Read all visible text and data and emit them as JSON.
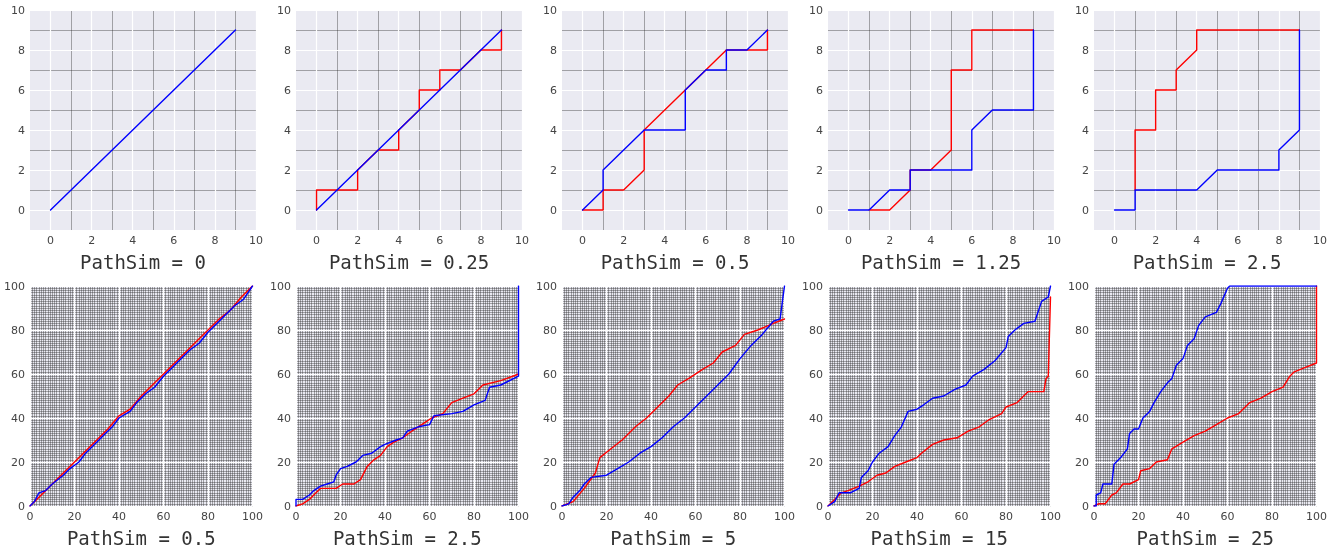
{
  "chart_data": [
    {
      "type": "line",
      "xlabel": "PathSim = 0",
      "xlim": [
        -1,
        10
      ],
      "ylim": [
        -1,
        10
      ],
      "xticks": [
        0,
        2,
        4,
        6,
        8,
        10
      ],
      "yticks": [
        0,
        2,
        4,
        6,
        8,
        10
      ],
      "grid": true,
      "line_style": "solid",
      "series": [
        {
          "color": "#0000ff",
          "x": [
            0,
            9
          ],
          "values": [
            0,
            9
          ]
        }
      ]
    },
    {
      "type": "line",
      "xlabel": "PathSim = 0.25",
      "xlim": [
        -1,
        10
      ],
      "ylim": [
        -1,
        10
      ],
      "xticks": [
        0,
        2,
        4,
        6,
        8,
        10
      ],
      "yticks": [
        0,
        2,
        4,
        6,
        8,
        10
      ],
      "grid": true,
      "line_style": "solid",
      "series": [
        {
          "color": "#ff0000",
          "x": [
            0,
            0,
            2,
            2,
            3,
            4,
            4,
            5,
            5,
            6,
            6,
            7,
            8,
            9,
            9
          ],
          "values": [
            0,
            1,
            1,
            2,
            3,
            3,
            4,
            5,
            6,
            6,
            7,
            7,
            8,
            8,
            9
          ]
        },
        {
          "color": "#0000ff",
          "x": [
            0,
            9
          ],
          "values": [
            0,
            9
          ]
        }
      ]
    },
    {
      "type": "line",
      "xlabel": "PathSim = 0.5",
      "xlim": [
        -1,
        10
      ],
      "ylim": [
        -1,
        10
      ],
      "xticks": [
        0,
        2,
        4,
        6,
        8,
        10
      ],
      "yticks": [
        0,
        2,
        4,
        6,
        8,
        10
      ],
      "grid": true,
      "line_style": "solid",
      "series": [
        {
          "color": "#ff0000",
          "x": [
            0,
            1,
            1,
            2,
            3,
            3,
            5,
            6,
            7,
            8,
            9,
            9
          ],
          "values": [
            0,
            0,
            1,
            1,
            2,
            4,
            6,
            7,
            8,
            8,
            8,
            9
          ]
        },
        {
          "color": "#0000ff",
          "x": [
            0,
            1,
            1,
            3,
            5,
            5,
            6,
            7,
            7,
            8,
            9
          ],
          "values": [
            0,
            1,
            2,
            4,
            4,
            6,
            7,
            7,
            8,
            8,
            9
          ]
        }
      ]
    },
    {
      "type": "line",
      "xlabel": "PathSim = 1.25",
      "xlim": [
        -1,
        10
      ],
      "ylim": [
        -1,
        10
      ],
      "xticks": [
        0,
        2,
        4,
        6,
        8,
        10
      ],
      "yticks": [
        0,
        2,
        4,
        6,
        8,
        10
      ],
      "grid": true,
      "line_style": "solid",
      "series": [
        {
          "color": "#ff0000",
          "x": [
            1,
            2,
            3,
            3,
            4,
            5,
            5,
            6,
            6,
            9
          ],
          "values": [
            0,
            0,
            1,
            2,
            2,
            3,
            7,
            7,
            9,
            9
          ]
        },
        {
          "color": "#0000ff",
          "x": [
            0,
            1,
            2,
            3,
            3,
            6,
            6,
            7,
            9,
            9
          ],
          "values": [
            0,
            0,
            1,
            1,
            2,
            2,
            4,
            5,
            5,
            9
          ]
        }
      ]
    },
    {
      "type": "line",
      "xlabel": "PathSim = 2.5",
      "xlim": [
        -1,
        10
      ],
      "ylim": [
        -1,
        10
      ],
      "xticks": [
        0,
        2,
        4,
        6,
        8,
        10
      ],
      "yticks": [
        0,
        2,
        4,
        6,
        8,
        10
      ],
      "grid": true,
      "line_style": "solid",
      "series": [
        {
          "color": "#ff0000",
          "x": [
            1,
            1,
            2,
            2,
            3,
            3,
            4,
            4,
            9
          ],
          "values": [
            1,
            4,
            4,
            6,
            6,
            7,
            8,
            9,
            9
          ]
        },
        {
          "color": "#0000ff",
          "x": [
            0,
            1,
            1,
            4,
            5,
            8,
            8,
            9,
            9
          ],
          "values": [
            0,
            0,
            1,
            1,
            2,
            2,
            3,
            4,
            9
          ]
        }
      ]
    },
    {
      "type": "line",
      "xlabel": "PathSim = 0.5",
      "xlim": [
        0,
        100
      ],
      "ylim": [
        0,
        100
      ],
      "xticks": [
        0,
        20,
        40,
        60,
        80,
        100
      ],
      "yticks": [
        0,
        20,
        40,
        60,
        80,
        100
      ],
      "grid": true,
      "line_style": "solid",
      "series": [
        {
          "color": "#ff0000",
          "x": [
            0,
            3,
            8,
            12,
            16,
            20,
            25,
            30,
            35,
            40,
            45,
            50,
            55,
            60,
            65,
            70,
            75,
            80,
            85,
            90,
            95,
            100
          ],
          "values": [
            0,
            3,
            8,
            12,
            16,
            20,
            25,
            30,
            35,
            41,
            44,
            50,
            55,
            60,
            65,
            70,
            75,
            80,
            85,
            89,
            95,
            100
          ]
        },
        {
          "color": "#0000ff",
          "x": [
            0,
            2,
            4,
            7,
            10,
            15,
            18,
            22,
            25,
            30,
            33,
            37,
            40,
            45,
            48,
            52,
            56,
            60,
            64,
            68,
            72,
            76,
            80,
            84,
            88,
            92,
            96,
            98,
            100
          ],
          "values": [
            0,
            2,
            6,
            7,
            10,
            14,
            17,
            20,
            24,
            29,
            32,
            36,
            40,
            43,
            47,
            51,
            54,
            59,
            63,
            67,
            71,
            74,
            79,
            83,
            87,
            91,
            94,
            97,
            100
          ]
        }
      ]
    },
    {
      "type": "line",
      "xlabel": "PathSim = 2.5",
      "xlim": [
        0,
        100
      ],
      "ylim": [
        0,
        100
      ],
      "xticks": [
        0,
        20,
        40,
        60,
        80,
        100
      ],
      "yticks": [
        0,
        20,
        40,
        60,
        80,
        100
      ],
      "grid": true,
      "line_style": "solid",
      "series": [
        {
          "color": "#ff0000",
          "x": [
            0,
            3,
            6,
            9,
            11,
            18,
            21,
            26,
            29,
            32,
            35,
            38,
            41,
            44,
            48,
            52,
            55,
            58,
            61,
            66,
            70,
            75,
            80,
            84,
            92,
            100
          ],
          "values": [
            0,
            1,
            3,
            6,
            8,
            8,
            10,
            10,
            12,
            18,
            21,
            23,
            27,
            29,
            31,
            34,
            36,
            38,
            40,
            42,
            47,
            49,
            51,
            55,
            57,
            60
          ]
        },
        {
          "color": "#0000ff",
          "x": [
            0,
            0,
            3,
            6,
            8,
            11,
            14,
            17,
            18,
            20,
            23,
            27,
            30,
            34,
            38,
            40,
            45,
            48,
            50,
            55,
            60,
            62,
            70,
            75,
            80,
            85,
            87,
            92,
            98,
            100,
            100
          ],
          "values": [
            0,
            3,
            3,
            5,
            7,
            9,
            10,
            11,
            14,
            17,
            18,
            20,
            23,
            24,
            27,
            28,
            30,
            31,
            34,
            36,
            37,
            41,
            42,
            43,
            46,
            48,
            54,
            55,
            58,
            59,
            100
          ]
        }
      ]
    },
    {
      "type": "line",
      "xlabel": "PathSim = 5",
      "xlim": [
        0,
        100
      ],
      "ylim": [
        0,
        100
      ],
      "xticks": [
        0,
        20,
        40,
        60,
        80,
        100
      ],
      "yticks": [
        0,
        20,
        40,
        60,
        80,
        100
      ],
      "grid": true,
      "line_style": "solid",
      "series": [
        {
          "color": "#ff0000",
          "x": [
            0,
            5,
            10,
            15,
            17,
            22,
            27,
            33,
            38,
            43,
            48,
            52,
            57,
            63,
            68,
            72,
            78,
            82,
            88,
            95,
            100
          ],
          "values": [
            0,
            2,
            8,
            15,
            22,
            26,
            30,
            36,
            40,
            45,
            50,
            55,
            58,
            62,
            65,
            70,
            73,
            78,
            80,
            83,
            85
          ]
        },
        {
          "color": "#0000ff",
          "x": [
            0,
            3,
            5,
            8,
            10,
            13,
            20,
            25,
            30,
            35,
            40,
            45,
            50,
            55,
            60,
            65,
            70,
            75,
            80,
            85,
            90,
            95,
            98,
            100
          ],
          "values": [
            0,
            1,
            4,
            7,
            10,
            13,
            14,
            17,
            20,
            24,
            27,
            31,
            36,
            40,
            45,
            50,
            55,
            60,
            67,
            73,
            78,
            84,
            85,
            100
          ]
        }
      ]
    },
    {
      "type": "line",
      "xlabel": "PathSim = 15",
      "xlim": [
        0,
        100
      ],
      "ylim": [
        0,
        100
      ],
      "xticks": [
        0,
        20,
        40,
        60,
        80,
        100
      ],
      "yticks": [
        0,
        20,
        40,
        60,
        80,
        100
      ],
      "grid": true,
      "line_style": "solid",
      "series": [
        {
          "color": "#ff0000",
          "x": [
            0,
            3,
            6,
            9,
            14,
            18,
            22,
            26,
            30,
            35,
            40,
            42,
            47,
            52,
            58,
            63,
            68,
            72,
            78,
            80,
            85,
            90,
            97,
            98,
            99,
            100
          ],
          "values": [
            0,
            3,
            6,
            7,
            9,
            11,
            14,
            15,
            18,
            20,
            22,
            24,
            28,
            30,
            31,
            34,
            36,
            39,
            42,
            45,
            47,
            52,
            52,
            58,
            59,
            95
          ]
        },
        {
          "color": "#0000ff",
          "x": [
            0,
            3,
            5,
            10,
            14,
            15,
            18,
            20,
            23,
            27,
            30,
            33,
            36,
            40,
            43,
            47,
            52,
            57,
            62,
            65,
            70,
            75,
            80,
            81,
            84,
            88,
            93,
            96,
            99,
            100
          ],
          "values": [
            0,
            2,
            6,
            6,
            8,
            13,
            16,
            20,
            24,
            27,
            32,
            36,
            43,
            44,
            46,
            49,
            50,
            53,
            55,
            59,
            62,
            66,
            72,
            77,
            80,
            83,
            84,
            93,
            95,
            100
          ]
        }
      ]
    },
    {
      "type": "line",
      "xlabel": "PathSim = 25",
      "xlim": [
        0,
        100
      ],
      "ylim": [
        0,
        100
      ],
      "xticks": [
        0,
        20,
        40,
        60,
        80,
        100
      ],
      "yticks": [
        0,
        20,
        40,
        60,
        80,
        100
      ],
      "grid": true,
      "line_style": "solid",
      "series": [
        {
          "color": "#ff0000",
          "x": [
            0,
            2,
            5,
            8,
            10,
            13,
            16,
            20,
            21,
            25,
            28,
            33,
            35,
            40,
            45,
            50,
            55,
            60,
            65,
            70,
            75,
            80,
            85,
            88,
            90,
            95,
            100,
            100
          ],
          "values": [
            0,
            1,
            1,
            5,
            6,
            10,
            10,
            12,
            16,
            17,
            20,
            21,
            26,
            29,
            32,
            34,
            37,
            40,
            42,
            47,
            49,
            52,
            54,
            59,
            61,
            63,
            65,
            100
          ]
        },
        {
          "color": "#0000ff",
          "x": [
            0,
            1,
            1,
            3,
            4,
            8,
            9,
            12,
            15,
            16,
            18,
            20,
            22,
            25,
            27,
            30,
            33,
            35,
            37,
            40,
            42,
            45,
            47,
            50,
            55,
            57,
            60,
            61,
            100
          ],
          "values": [
            0,
            0,
            5,
            6,
            10,
            10,
            19,
            22,
            26,
            33,
            35,
            35,
            40,
            43,
            47,
            52,
            56,
            58,
            64,
            67,
            73,
            76,
            82,
            86,
            88,
            92,
            99,
            100,
            100
          ]
        }
      ]
    }
  ]
}
